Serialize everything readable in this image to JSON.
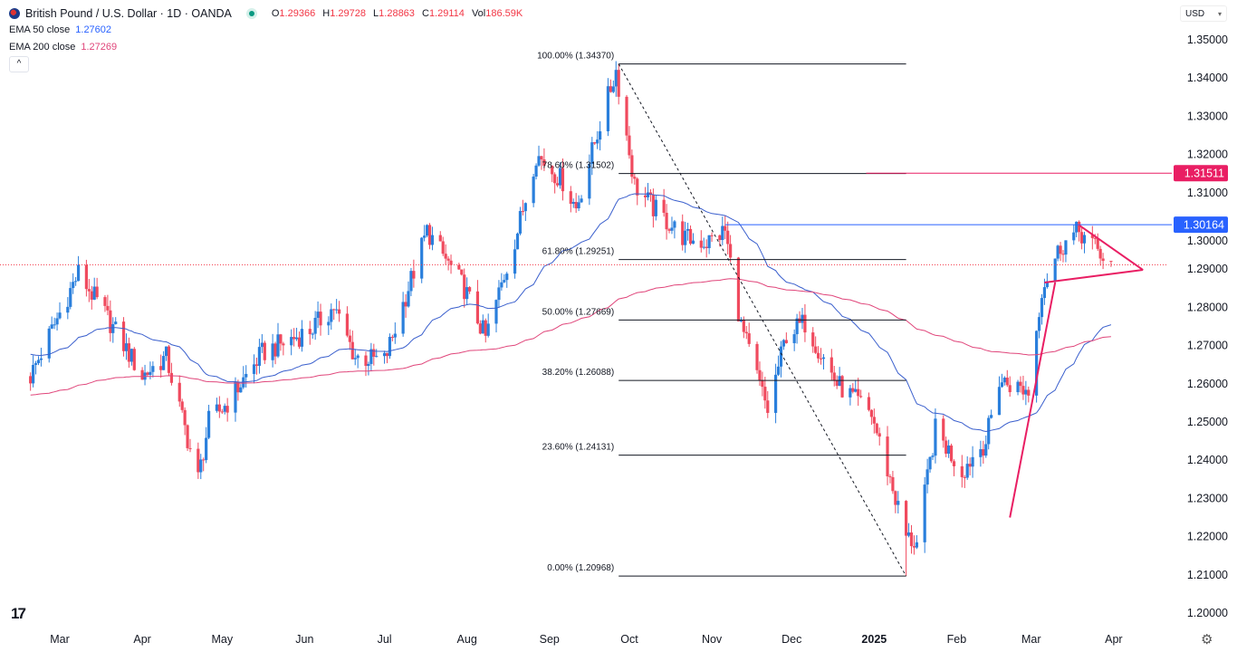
{
  "header": {
    "symbol_title": "British Pound / U.S. Dollar · 1D · OANDA",
    "open_label": "O",
    "open": "1.29366",
    "high_label": "H",
    "high": "1.29728",
    "low_label": "L",
    "low": "1.28863",
    "close_label": "C",
    "close": "1.29114",
    "vol_label": "Vol",
    "vol": "186.59K",
    "ema50_label": "EMA 50 close",
    "ema50_value": "1.27602",
    "ema200_label": "EMA 200 close",
    "ema200_value": "1.27269",
    "collapse_icon": "^",
    "currency": "USD"
  },
  "colors": {
    "up": "#2a7fdc",
    "down": "#f04a5e",
    "ema50": "#3a5fcd",
    "ema200": "#e0457a",
    "pink": "#e91e63",
    "blue_level": "#2962ff"
  },
  "chart_data": {
    "type": "candlestick",
    "title": "British Pound / U.S. Dollar · 1D · OANDA",
    "ylim": [
      1.195,
      1.355
    ],
    "y_ticks": [
      "1.35000",
      "1.34000",
      "1.33000",
      "1.32000",
      "1.31000",
      "1.30000",
      "1.29000",
      "1.28000",
      "1.27000",
      "1.26000",
      "1.25000",
      "1.24000",
      "1.23000",
      "1.22000",
      "1.21000",
      "1.20000"
    ],
    "x_ticks": [
      {
        "label": "Mar",
        "date": "2024-03-01"
      },
      {
        "label": "Apr",
        "date": "2024-04-01"
      },
      {
        "label": "May",
        "date": "2024-05-01"
      },
      {
        "label": "Jun",
        "date": "2024-06-01"
      },
      {
        "label": "Jul",
        "date": "2024-07-01"
      },
      {
        "label": "Aug",
        "date": "2024-08-01"
      },
      {
        "label": "Sep",
        "date": "2024-09-01"
      },
      {
        "label": "Oct",
        "date": "2024-10-01"
      },
      {
        "label": "Nov",
        "date": "2024-11-01"
      },
      {
        "label": "Dec",
        "date": "2024-12-01"
      },
      {
        "label": "2025",
        "date": "2025-01-01"
      },
      {
        "label": "Feb",
        "date": "2025-02-01"
      },
      {
        "label": "Mar",
        "date": "2025-03-01"
      },
      {
        "label": "Apr",
        "date": "2025-04-01"
      }
    ],
    "approx_close_path": [
      [
        "2024-02-19",
        1.262
      ],
      [
        "2024-03-08",
        1.289
      ],
      [
        "2024-03-20",
        1.276
      ],
      [
        "2024-04-01",
        1.262
      ],
      [
        "2024-04-10",
        1.267
      ],
      [
        "2024-04-22",
        1.235
      ],
      [
        "2024-04-26",
        1.25
      ],
      [
        "2024-05-03",
        1.255
      ],
      [
        "2024-05-16",
        1.268
      ],
      [
        "2024-06-03",
        1.274
      ],
      [
        "2024-06-12",
        1.28
      ],
      [
        "2024-06-20",
        1.267
      ],
      [
        "2024-07-01",
        1.266
      ],
      [
        "2024-07-17",
        1.3
      ],
      [
        "2024-07-31",
        1.285
      ],
      [
        "2024-08-08",
        1.272
      ],
      [
        "2024-08-20",
        1.3
      ],
      [
        "2024-08-27",
        1.32
      ],
      [
        "2024-09-06",
        1.313
      ],
      [
        "2024-09-11",
        1.306
      ],
      [
        "2024-09-20",
        1.328
      ],
      [
        "2024-09-26",
        1.342
      ],
      [
        "2024-10-03",
        1.312
      ],
      [
        "2024-10-10",
        1.306
      ],
      [
        "2024-10-22",
        1.298
      ],
      [
        "2024-10-30",
        1.297
      ],
      [
        "2024-11-06",
        1.3
      ],
      [
        "2024-11-12",
        1.275
      ],
      [
        "2024-11-22",
        1.253
      ],
      [
        "2024-11-29",
        1.273
      ],
      [
        "2024-12-06",
        1.276
      ],
      [
        "2024-12-18",
        1.26
      ],
      [
        "2024-12-31",
        1.252
      ],
      [
        "2025-01-07",
        1.235
      ],
      [
        "2025-01-13",
        1.22
      ],
      [
        "2025-01-17",
        1.218
      ],
      [
        "2025-01-24",
        1.248
      ],
      [
        "2025-02-03",
        1.237
      ],
      [
        "2025-02-07",
        1.241
      ],
      [
        "2025-02-12",
        1.245
      ],
      [
        "2025-02-17",
        1.261
      ],
      [
        "2025-02-28",
        1.258
      ],
      [
        "2025-03-05",
        1.285
      ],
      [
        "2025-03-12",
        1.296
      ],
      [
        "2025-03-19",
        1.3
      ],
      [
        "2025-03-31",
        1.291
      ]
    ],
    "ema_seed": {
      "ema50": 1.268,
      "ema200": 1.257
    },
    "fibonacci": {
      "from": {
        "date": "2024-09-27",
        "price": 1.3437
      },
      "to": {
        "date": "2025-01-13",
        "price": 1.20968
      },
      "levels": [
        {
          "label": "100.00% (1.34370)",
          "price": 1.3437
        },
        {
          "label": "78.60% (1.31502)",
          "price": 1.31502
        },
        {
          "label": "61.80% (1.29251)",
          "price": 1.29251
        },
        {
          "label": "50.00% (1.27669)",
          "price": 1.27669
        },
        {
          "label": "38.20% (1.26088)",
          "price": 1.26088
        },
        {
          "label": "23.60% (1.24131)",
          "price": 1.24131
        },
        {
          "label": "0.00% (1.20968)",
          "price": 1.20968
        }
      ]
    },
    "horizontal_levels": [
      {
        "label": "1.31511",
        "price": 1.31511,
        "color": "#e91e63",
        "from": "2024-12-29"
      },
      {
        "label": "1.30164",
        "price": 1.30164,
        "color": "#2962ff",
        "from": "2024-11-06"
      }
    ],
    "current_price": 1.29114,
    "trendlines": [
      {
        "name": "pennant-upper",
        "p1": [
          "2025-03-19",
          1.3015
        ],
        "p2": [
          "2025-04-12",
          1.2898
        ]
      },
      {
        "name": "pennant-lower",
        "p1": [
          "2025-03-06",
          1.2865
        ],
        "p2": [
          "2025-04-12",
          1.2898
        ]
      },
      {
        "name": "flagpole",
        "p1": [
          "2025-02-21",
          1.225
        ],
        "p2": [
          "2025-03-10",
          1.2865
        ]
      }
    ]
  }
}
